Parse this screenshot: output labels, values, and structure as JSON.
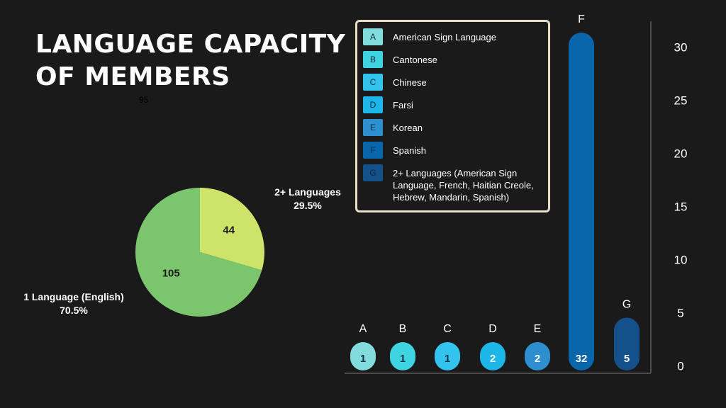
{
  "title_lines": [
    "LANGUAGE CAPACITY",
    "OF MEMBERS"
  ],
  "stray_label": "95",
  "pie": {
    "slices": [
      {
        "name": "2+ Languages",
        "value": 44,
        "percent": "29.5%",
        "color": "#cde36a"
      },
      {
        "name": "1 Language (English)",
        "value": 105,
        "percent": "70.5%",
        "color": "#7bc56c"
      }
    ]
  },
  "chart_data": {
    "type": "bar",
    "categories": [
      "A",
      "B",
      "C",
      "D",
      "E",
      "F",
      "G"
    ],
    "values": [
      1,
      1,
      1,
      2,
      2,
      32,
      5
    ],
    "colors": [
      "#82dcde",
      "#3ed4e2",
      "#33c4ee",
      "#1cb6e8",
      "#2e8fd0",
      "#0a66aa",
      "#14508a"
    ],
    "yticks": [
      0,
      5,
      10,
      15,
      20,
      25,
      30
    ],
    "ylim": [
      0,
      32
    ],
    "legend_position": "top-left",
    "legend": [
      {
        "key": "A",
        "label": "American Sign Language"
      },
      {
        "key": "B",
        "label": "Cantonese"
      },
      {
        "key": "C",
        "label": "Chinese"
      },
      {
        "key": "D",
        "label": "Farsi"
      },
      {
        "key": "E",
        "label": "Korean"
      },
      {
        "key": "F",
        "label": "Spanish"
      },
      {
        "key": "G",
        "label": "2+ Languages (American Sign Language, French, Haitian Creole, Hebrew, Mandarin, Spanish)"
      }
    ]
  }
}
